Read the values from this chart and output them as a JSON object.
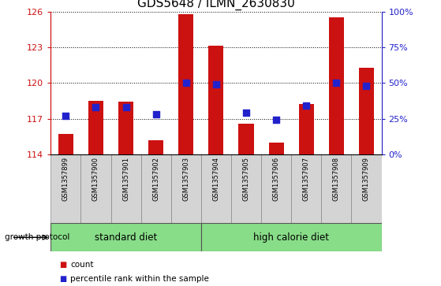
{
  "title": "GDS5648 / ILMN_2630830",
  "samples": [
    "GSM1357899",
    "GSM1357900",
    "GSM1357901",
    "GSM1357902",
    "GSM1357903",
    "GSM1357904",
    "GSM1357905",
    "GSM1357906",
    "GSM1357907",
    "GSM1357908",
    "GSM1357909"
  ],
  "counts": [
    115.7,
    118.5,
    118.4,
    115.2,
    125.8,
    123.1,
    116.6,
    115.0,
    118.2,
    125.5,
    121.3
  ],
  "percentiles": [
    27,
    33,
    33,
    28,
    50,
    49,
    29,
    24,
    34,
    50,
    48
  ],
  "ylim_left": [
    114,
    126
  ],
  "ylim_right": [
    0,
    100
  ],
  "yticks_left": [
    114,
    117,
    120,
    123,
    126
  ],
  "yticks_right": [
    0,
    25,
    50,
    75,
    100
  ],
  "ytick_labels_right": [
    "0%",
    "25%",
    "50%",
    "75%",
    "100%"
  ],
  "bar_color": "#cc1111",
  "dot_color": "#2222cc",
  "grid_color": "#000000",
  "n_standard": 5,
  "n_high_calorie": 6,
  "protocol_label": "growth protocol",
  "standard_label": "standard diet",
  "high_calorie_label": "high calorie diet",
  "legend_count_label": "count",
  "legend_percentile_label": "percentile rank within the sample",
  "title_fontsize": 11,
  "axis_color_left": "#cc1111",
  "axis_color_right": "#2222cc",
  "bar_bottom": 114,
  "dot_size": 30,
  "gray_bg": "#d4d4d4",
  "green_color": "#88dd88"
}
